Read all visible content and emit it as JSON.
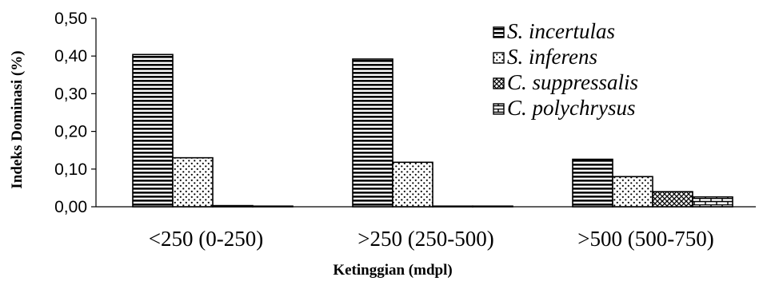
{
  "chart_data": {
    "type": "bar",
    "categories": [
      "<250 (0-250)",
      ">250 (250-500)",
      ">500 (500-750)"
    ],
    "series": [
      {
        "name": "S. incertulas",
        "values": [
          0.404,
          0.392,
          0.126
        ],
        "pattern": "horizontal-lines"
      },
      {
        "name": "S. inferens",
        "values": [
          0.13,
          0.118,
          0.08
        ],
        "pattern": "dots"
      },
      {
        "name": "C. suppressalis",
        "values": [
          0.003,
          0.001,
          0.04
        ],
        "pattern": "crosshatch"
      },
      {
        "name": "C. polychrysus",
        "values": [
          0.0,
          0.0,
          0.026
        ],
        "pattern": "brick"
      }
    ],
    "xlabel": "Ketinggian (mdpl)",
    "ylabel": "Indeks Dominasi (%)",
    "ylim": [
      0,
      0.5
    ],
    "yticks": [
      "0,00",
      "0,10",
      "0,20",
      "0,30",
      "0,40",
      "0,50"
    ],
    "grid": false,
    "legend_position": "top-right"
  }
}
